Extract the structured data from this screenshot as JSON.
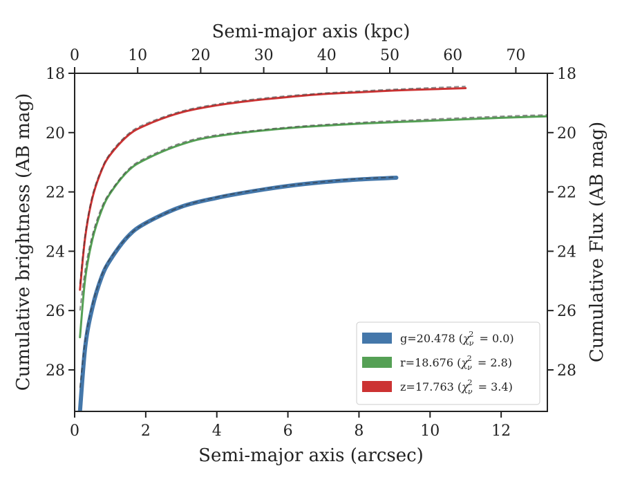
{
  "chart_data": {
    "type": "line",
    "xlabel": "Semi-major axis (arcsec)",
    "ylabel": "Cumulative brightness (AB mag)",
    "x2label": "Semi-major axis (kpc)",
    "y2label": "Cumulative Flux (AB mag)",
    "xlim": [
      0,
      13.3
    ],
    "ylim": [
      29.4,
      18
    ],
    "x2lim": [
      0,
      75
    ],
    "y_inverted": true,
    "xticks": [
      "0",
      "2",
      "4",
      "6",
      "8",
      "10",
      "12"
    ],
    "yticks": [
      "18",
      "20",
      "22",
      "24",
      "26",
      "28"
    ],
    "x2ticks": [
      "0",
      "10",
      "20",
      "30",
      "40",
      "50",
      "60",
      "70"
    ],
    "y2ticks": [
      "18",
      "20",
      "22",
      "24",
      "26",
      "28"
    ],
    "grid": false,
    "legend_position": "lower-right",
    "series": [
      {
        "name": "g=20.478",
        "chi2": "0.0",
        "color": "#4477aa",
        "x": [
          0.15,
          0.3,
          0.5,
          0.75,
          1.0,
          1.5,
          2.0,
          3.0,
          4.0,
          5.0,
          6.0,
          7.0,
          8.0,
          9.05
        ],
        "y": [
          29.4,
          27.2,
          25.9,
          24.9,
          24.3,
          23.5,
          23.05,
          22.5,
          22.2,
          21.98,
          21.8,
          21.67,
          21.58,
          21.52
        ],
        "model_y": [
          28.6,
          27.0,
          25.8,
          24.85,
          24.25,
          23.5,
          23.05,
          22.5,
          22.18,
          21.96,
          21.79,
          21.66,
          21.56,
          21.5
        ]
      },
      {
        "name": "r=18.676",
        "chi2": "2.8",
        "color": "#55a055",
        "x": [
          0.15,
          0.3,
          0.5,
          0.75,
          1.0,
          1.5,
          2.0,
          3.0,
          4.0,
          6.0,
          8.0,
          10.0,
          12.0,
          13.3
        ],
        "y": [
          26.9,
          24.9,
          23.6,
          22.65,
          22.05,
          21.3,
          20.9,
          20.4,
          20.12,
          19.85,
          19.7,
          19.6,
          19.5,
          19.45
        ],
        "model_y": [
          26.0,
          24.6,
          23.45,
          22.55,
          22.0,
          21.25,
          20.85,
          20.35,
          20.08,
          19.82,
          19.66,
          19.55,
          19.45,
          19.4
        ]
      },
      {
        "name": "z=17.763",
        "chi2": "3.4",
        "color": "#cc3333",
        "x": [
          0.15,
          0.3,
          0.5,
          0.75,
          1.0,
          1.5,
          2.0,
          3.0,
          4.0,
          5.0,
          6.0,
          7.0,
          8.0,
          9.0,
          10.0,
          11.0
        ],
        "y": [
          25.3,
          23.5,
          22.2,
          21.3,
          20.75,
          20.1,
          19.75,
          19.32,
          19.08,
          18.92,
          18.8,
          18.7,
          18.64,
          18.58,
          18.54,
          18.5
        ],
        "model_y": [
          25.1,
          23.4,
          22.12,
          21.25,
          20.7,
          20.05,
          19.7,
          19.28,
          19.04,
          18.88,
          18.76,
          18.67,
          18.6,
          18.54,
          18.49,
          18.44
        ]
      }
    ]
  }
}
